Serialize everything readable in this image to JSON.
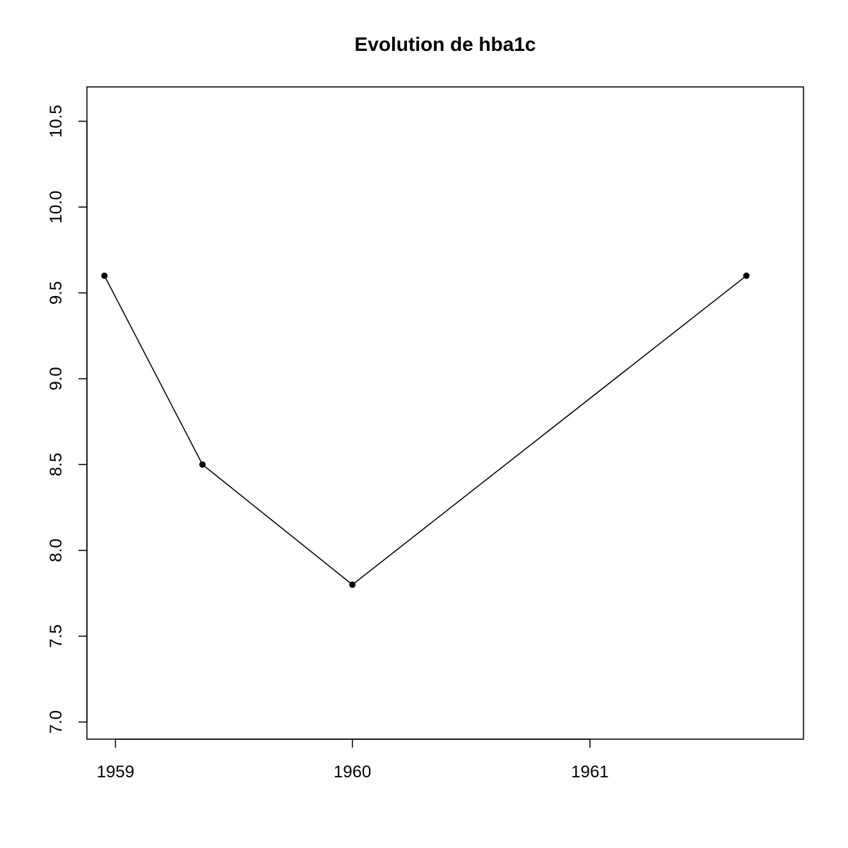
{
  "chart_data": {
    "type": "line",
    "title": "Evolution de hba1c",
    "xlabel": "",
    "ylabel": "",
    "x_axis": "date",
    "xlim": [
      "1958-11-18",
      "1961-11-26"
    ],
    "ylim": [
      6.9,
      10.7
    ],
    "x_ticks": [
      "1959",
      "1960",
      "1961"
    ],
    "x_tick_dates": [
      "1959-01-01",
      "1960-01-01",
      "1961-01-01"
    ],
    "y_ticks": [
      "7.0",
      "7.5",
      "8.0",
      "8.5",
      "9.0",
      "9.5",
      "10.0",
      "10.5"
    ],
    "y_tick_values": [
      7.0,
      7.5,
      8.0,
      8.5,
      9.0,
      9.5,
      10.0,
      10.5
    ],
    "series": [
      {
        "x": [
          "1958-12-15",
          "1959-05-15",
          "1960-01-01",
          "1961-08-30"
        ],
        "y": [
          9.6,
          8.5,
          7.8,
          9.6
        ]
      }
    ],
    "grid": false,
    "legend": "none",
    "marker": "filled-circle",
    "line_color": "#000000"
  }
}
